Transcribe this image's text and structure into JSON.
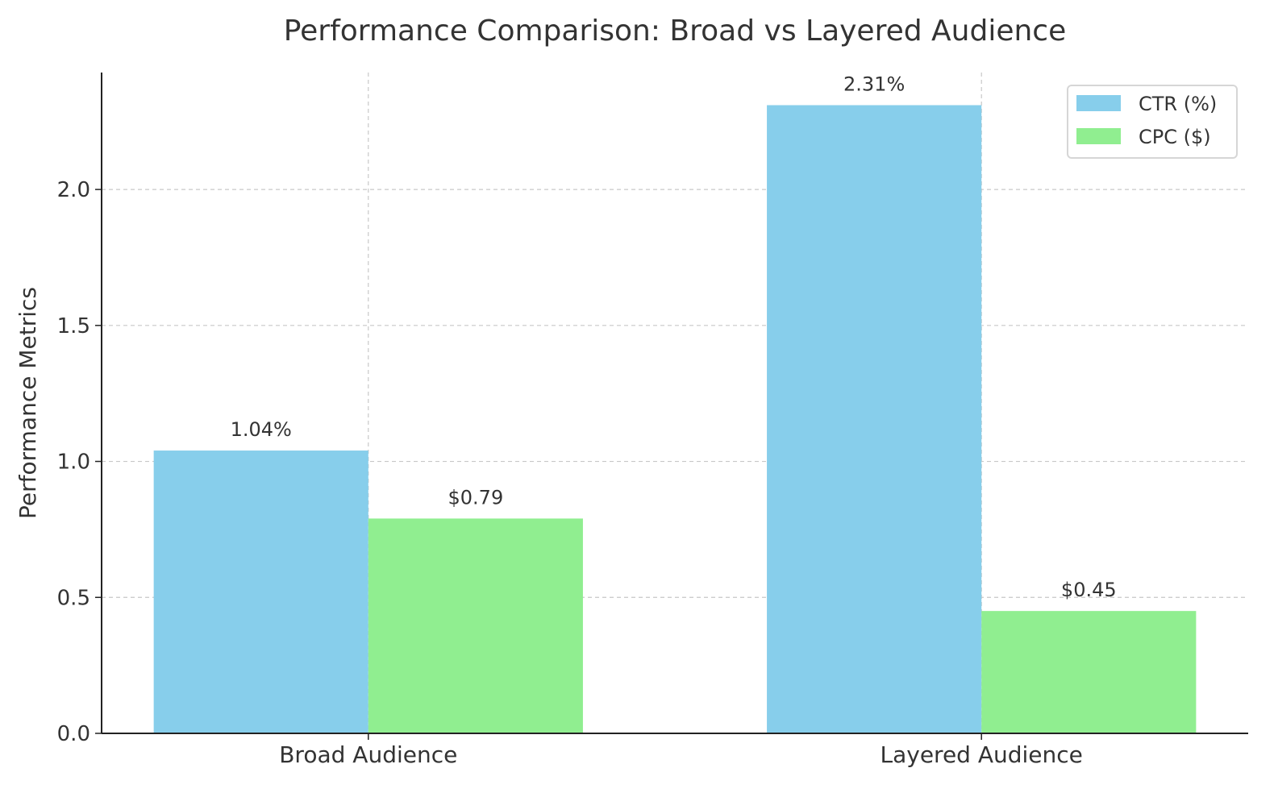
{
  "chart_data": {
    "type": "bar",
    "title": "Performance Comparison: Broad vs Layered Audience",
    "xlabel": "",
    "ylabel": "Performance Metrics",
    "categories": [
      "Broad Audience",
      "Layered Audience"
    ],
    "series": [
      {
        "name": "CTR (%)",
        "values": [
          1.04,
          2.31
        ],
        "labels": [
          "1.04%",
          "2.31%"
        ],
        "color": "#87CEEB"
      },
      {
        "name": "CPC ($)",
        "values": [
          0.79,
          0.45
        ],
        "labels": [
          "$0.79",
          "$0.45"
        ],
        "color": "#90EE90"
      }
    ],
    "ylim": [
      0,
      2.43
    ],
    "yticks": [
      0.0,
      0.5,
      1.0,
      1.5,
      2.0
    ],
    "ytick_labels": [
      "0.0",
      "0.5",
      "1.0",
      "1.5",
      "2.0"
    ],
    "grid": true,
    "legend_position": "top-right"
  }
}
